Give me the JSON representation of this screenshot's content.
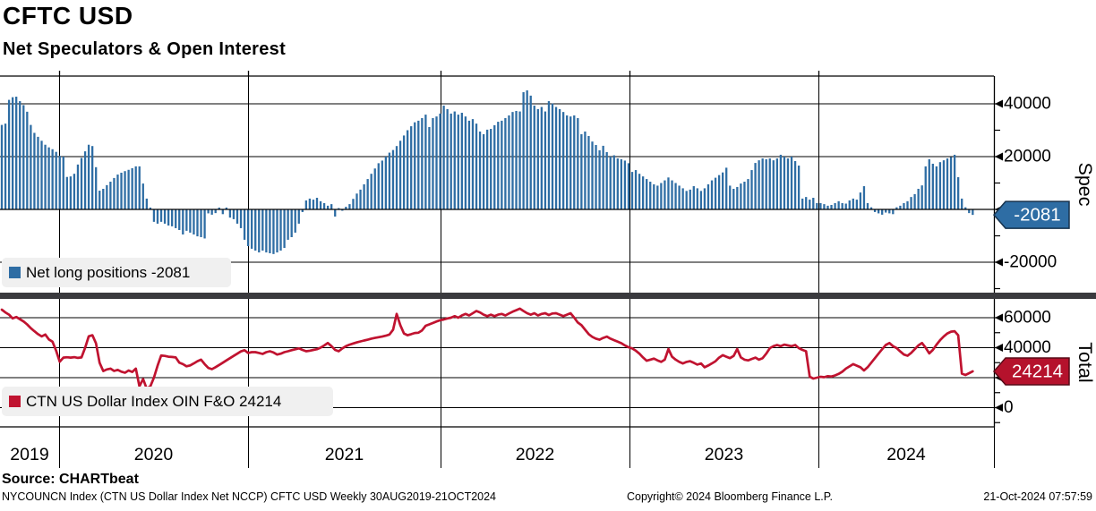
{
  "header": {
    "title": "CFTC USD",
    "subtitle": "Net Speculators & Open Interest"
  },
  "x_axis": {
    "years": [
      "2019",
      "2020",
      "2021",
      "2022",
      "2023",
      "2024"
    ]
  },
  "footer": {
    "source": "Source: CHARTbeat",
    "left": "NYCOUNCN Index (CTN US Dollar Index Net NCCP) CFTC USD  Weekly 30AUG2019-21OCT2024",
    "center": "Copyright© 2024 Bloomberg Finance L.P.",
    "right": "21-Oct-2024 07:57:59"
  },
  "chart_data": [
    {
      "type": "bar",
      "name": "Net long positions",
      "legend": "Net long positions -2081",
      "axis_title": "Spec",
      "last_value": -2081,
      "tag_label": "-2081",
      "color": "#2e6da4",
      "tag_bg": "#2e6da4",
      "tag_border": "#16324d",
      "frequency": "Weekly",
      "x_start": "30AUG2019",
      "x_end": "21OCT2024",
      "ylim": [
        -31500,
        50500
      ],
      "yticks_major": [
        40000,
        20000,
        0,
        -20000
      ],
      "yticks_minor": [
        30000,
        10000,
        -10000,
        -30000
      ],
      "grid": true,
      "legend_position": "bottom-left",
      "values": [
        32000,
        32500,
        41500,
        42500,
        42700,
        41000,
        39500,
        37000,
        32000,
        29000,
        27500,
        26000,
        24500,
        23500,
        22800,
        21800,
        20300,
        20000,
        12300,
        12500,
        13500,
        17000,
        19500,
        22000,
        24500,
        24000,
        16000,
        7100,
        7800,
        9200,
        10500,
        11900,
        13200,
        13900,
        14500,
        15000,
        15600,
        16300,
        16300,
        9800,
        4100,
        700,
        -4700,
        -5400,
        -4700,
        -5400,
        -6100,
        -6400,
        -7100,
        -7800,
        -9500,
        -8100,
        -8800,
        -9500,
        -10200,
        -10500,
        -11000,
        -1500,
        -2000,
        -1400,
        700,
        -1800,
        700,
        -3100,
        -3700,
        -5400,
        -7100,
        -11500,
        -13900,
        -14900,
        -15600,
        -16300,
        -15600,
        -16300,
        -16600,
        -16900,
        -16300,
        -15600,
        -14600,
        -11500,
        -10500,
        -8800,
        -5400,
        -1000,
        3400,
        4100,
        3700,
        4400,
        3100,
        2400,
        1400,
        2000,
        -2700,
        500,
        -500,
        1000,
        2000,
        4000,
        6000,
        7500,
        9500,
        11500,
        13500,
        15500,
        17500,
        18500,
        20000,
        21500,
        22500,
        24000,
        26000,
        28000,
        30000,
        31500,
        33000,
        33600,
        34600,
        35900,
        31200,
        34600,
        35200,
        36300,
        39300,
        38000,
        36300,
        37100,
        35900,
        36600,
        35200,
        33600,
        34200,
        32500,
        29500,
        28500,
        30200,
        30500,
        31900,
        33200,
        33600,
        34600,
        35600,
        36900,
        37300,
        37100,
        44400,
        45100,
        43100,
        39300,
        38000,
        38800,
        37100,
        41000,
        40100,
        38800,
        38000,
        36900,
        35600,
        35200,
        35600,
        34600,
        28500,
        29500,
        27800,
        25700,
        24400,
        22400,
        24100,
        21700,
        20000,
        20500,
        19300,
        19000,
        18500,
        17500,
        14200,
        14900,
        13500,
        12500,
        11500,
        10500,
        9500,
        9000,
        10000,
        11000,
        12100,
        11000,
        10000,
        9000,
        8000,
        7000,
        7500,
        8800,
        8000,
        7000,
        8000,
        9500,
        11000,
        12000,
        13000,
        14000,
        15800,
        9000,
        7800,
        8500,
        9800,
        10500,
        11500,
        14900,
        17600,
        18600,
        19300,
        19000,
        19300,
        18600,
        19300,
        20700,
        20000,
        19300,
        20000,
        18300,
        16600,
        4100,
        4700,
        3700,
        4400,
        2400,
        2400,
        2000,
        1400,
        1700,
        2400,
        3100,
        2400,
        2200,
        3400,
        4100,
        3700,
        6400,
        8800,
        2400,
        800,
        -1000,
        -1500,
        -2000,
        -1200,
        -1500,
        -1800,
        800,
        1400,
        2400,
        3100,
        4700,
        5800,
        7800,
        9100,
        16300,
        19000,
        17300,
        16300,
        17900,
        18600,
        19300,
        19800,
        20700,
        12200,
        4100,
        800,
        -1400,
        -2081
      ]
    },
    {
      "type": "line",
      "name": "CTN US Dollar Index OIN F&O",
      "legend": "CTN US Dollar Index OIN F&O 24214",
      "axis_title": "Total",
      "last_value": 24214,
      "tag_label": "24214",
      "color": "#c01330",
      "tag_bg": "#b5122c",
      "tag_border": "#570a17",
      "frequency": "Weekly",
      "x_start": "30AUG2019",
      "x_end": "21OCT2024",
      "ylim": [
        -12800,
        72500
      ],
      "yticks_major": [
        60000,
        40000,
        20000,
        0
      ],
      "yticks_minor": [
        50000,
        30000,
        10000,
        -10000
      ],
      "grid": true,
      "legend_position": "bottom-left",
      "values": [
        65400,
        63500,
        62000,
        59500,
        60500,
        59000,
        57500,
        55500,
        53000,
        51000,
        49000,
        47500,
        48800,
        45500,
        44000,
        38000,
        30600,
        33400,
        33600,
        33400,
        33700,
        33200,
        33500,
        40000,
        47600,
        48300,
        42900,
        30000,
        24400,
        25500,
        26000,
        24500,
        25200,
        24000,
        23300,
        24800,
        23800,
        26000,
        14200,
        19100,
        12700,
        14200,
        20000,
        28000,
        34800,
        34500,
        34000,
        33800,
        33500,
        30000,
        29000,
        27600,
        28200,
        29500,
        31000,
        32000,
        29000,
        26500,
        25700,
        27000,
        28500,
        30000,
        31500,
        33000,
        34500,
        36000,
        37500,
        38300,
        36500,
        37000,
        37000,
        36500,
        35800,
        37000,
        37600,
        36800,
        35400,
        36000,
        37000,
        37600,
        38300,
        38900,
        39500,
        38500,
        37600,
        38000,
        38500,
        39000,
        40000,
        41500,
        43100,
        41000,
        38500,
        37600,
        39500,
        41000,
        42000,
        42800,
        43500,
        44200,
        44800,
        45300,
        46000,
        46500,
        47000,
        47400,
        48000,
        48800,
        52000,
        62500,
        55000,
        49500,
        48300,
        49000,
        49800,
        50000,
        51500,
        54600,
        55500,
        56500,
        57500,
        58300,
        58800,
        59500,
        60000,
        61000,
        60000,
        61500,
        62500,
        61500,
        63000,
        64500,
        63500,
        62000,
        61000,
        62000,
        61000,
        62000,
        62500,
        61500,
        62800,
        64000,
        65000,
        66000,
        64500,
        63000,
        62000,
        63000,
        61500,
        62500,
        63000,
        61800,
        62800,
        63000,
        62000,
        61000,
        62000,
        63000,
        60000,
        56800,
        55000,
        52000,
        49000,
        47200,
        46000,
        45300,
        46500,
        47400,
        46000,
        45000,
        44000,
        43000,
        41500,
        40300,
        39500,
        38000,
        36000,
        33500,
        31300,
        32000,
        32700,
        31500,
        30500,
        32000,
        39100,
        34000,
        32000,
        30500,
        29500,
        30500,
        31000,
        29900,
        28700,
        29500,
        26900,
        28100,
        29500,
        31000,
        33400,
        35000,
        34000,
        33000,
        34500,
        39100,
        33500,
        32000,
        31500,
        32500,
        33400,
        32000,
        33000,
        36000,
        39700,
        41000,
        41800,
        41000,
        42000,
        41500,
        41000,
        41800,
        39700,
        38500,
        37600,
        20600,
        19400,
        20000,
        20600,
        20300,
        21000,
        20800,
        21500,
        22500,
        24000,
        26000,
        27500,
        29000,
        28000,
        26900,
        24800,
        27000,
        30000,
        33000,
        36000,
        39000,
        41800,
        43100,
        41000,
        39700,
        37500,
        35400,
        34600,
        36500,
        39000,
        41500,
        43100,
        40000,
        36200,
        38500,
        42000,
        45000,
        47500,
        49500,
        50700,
        51000,
        48300,
        22700,
        21800,
        23000,
        24214
      ]
    }
  ]
}
